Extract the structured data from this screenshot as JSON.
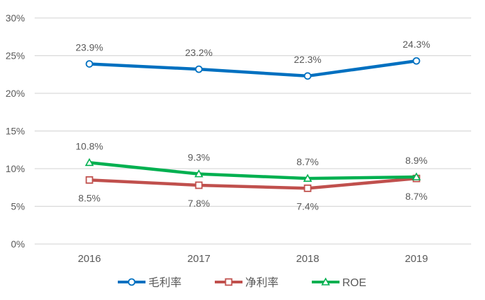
{
  "chart_data": {
    "type": "line",
    "title": "",
    "xlabel": "",
    "ylabel": "",
    "categories": [
      "2016",
      "2017",
      "2018",
      "2019"
    ],
    "ylim": [
      0,
      30
    ],
    "yticks": [
      "0%",
      "5%",
      "10%",
      "15%",
      "20%",
      "25%",
      "30%"
    ],
    "ytick_values": [
      0,
      5,
      10,
      15,
      20,
      25,
      30
    ],
    "grid": true,
    "legend_position": "bottom",
    "series": [
      {
        "name": "毛利率",
        "values": [
          23.9,
          23.2,
          22.3,
          24.3
        ],
        "labels": [
          "23.9%",
          "23.2%",
          "22.3%",
          "24.3%"
        ],
        "color": "#0070C0",
        "marker": "circle",
        "label_position": "above"
      },
      {
        "name": "净利率",
        "values": [
          8.5,
          7.8,
          7.4,
          8.7
        ],
        "labels": [
          "8.5%",
          "7.8%",
          "7.4%",
          "8.7%"
        ],
        "color": "#C0504D",
        "marker": "square",
        "label_position": "below"
      },
      {
        "name": "ROE",
        "values": [
          10.8,
          9.3,
          8.7,
          8.9
        ],
        "labels": [
          "10.8%",
          "9.3%",
          "8.7%",
          "8.9%"
        ],
        "color": "#00B050",
        "marker": "triangle",
        "label_position": "above"
      }
    ]
  }
}
